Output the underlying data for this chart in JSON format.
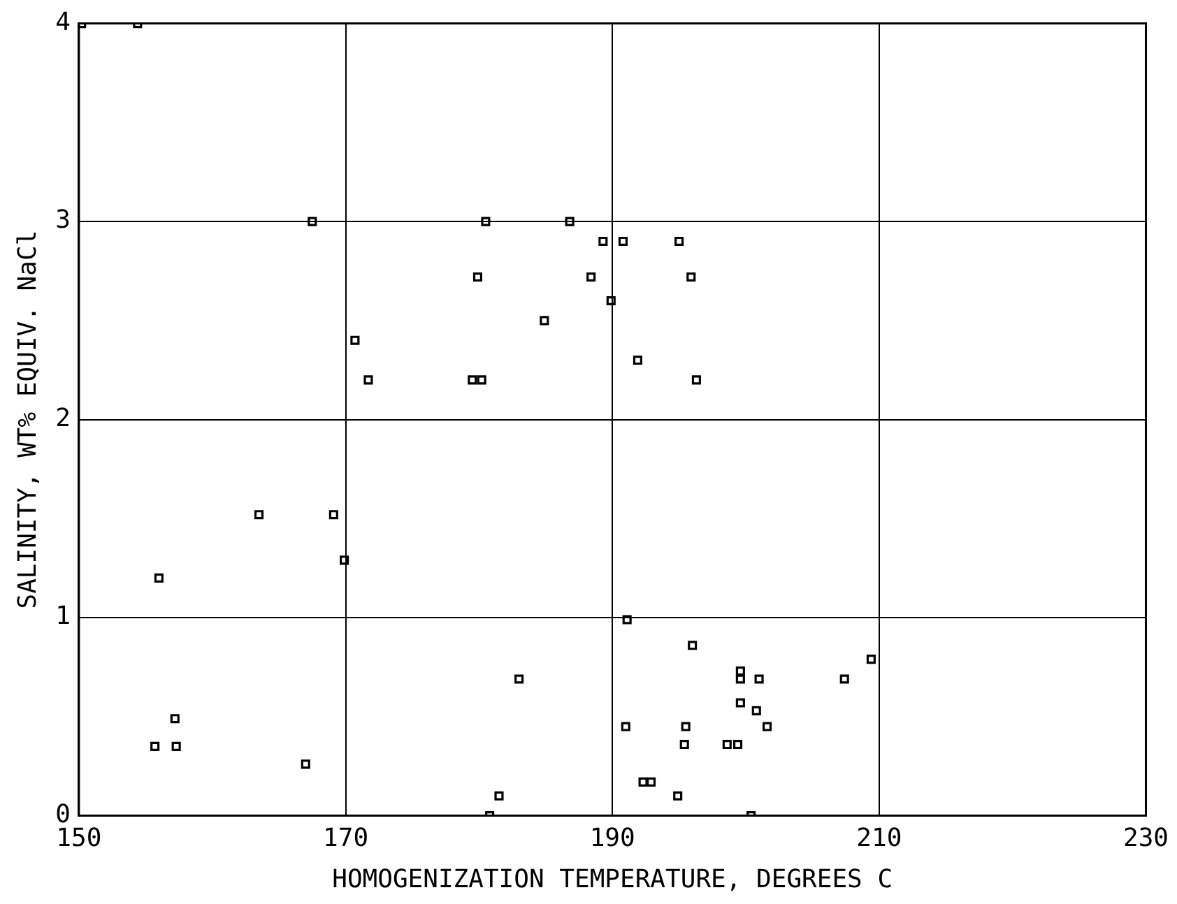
{
  "chart_data": {
    "type": "scatter",
    "xlabel": "HOMOGENIZATION TEMPERATURE, DEGREES C",
    "ylabel": "SALINITY, WT% EQUIV. NaCl",
    "xlim": [
      150,
      230
    ],
    "xticks": [
      150,
      170,
      190,
      210,
      230
    ],
    "ylim": [
      0,
      4
    ],
    "yticks": [
      0,
      1,
      2,
      3,
      4
    ],
    "grid": true,
    "marker": "square",
    "series": [
      {
        "color": "#000000",
        "x": [
          150.2,
          154.4,
          167.5,
          180.5,
          186.8,
          189.3,
          190.8,
          195,
          179.9,
          188.4,
          195.9,
          189.9,
          184.9,
          170.7,
          191.9,
          171.7,
          179.5,
          180.2,
          196.3,
          163.5,
          169.1,
          169.9,
          156,
          191.1,
          196,
          183,
          199.6,
          199.6,
          201,
          207.4,
          209.4,
          199.6,
          200.8,
          191,
          195.5,
          201.6,
          195.4,
          198.6,
          199.4,
          155.7,
          157.3,
          157.2,
          167,
          192.3,
          192.9,
          194.9,
          181.5,
          180.8,
          200.4
        ],
        "values": [
          4,
          4,
          3,
          3,
          3,
          2.9,
          2.9,
          2.9,
          2.72,
          2.72,
          2.72,
          2.6,
          2.5,
          2.4,
          2.3,
          2.2,
          2.2,
          2.2,
          2.2,
          1.52,
          1.52,
          1.29,
          1.2,
          0.99,
          0.86,
          0.69,
          0.73,
          0.69,
          0.69,
          0.69,
          0.79,
          0.57,
          0.53,
          0.45,
          0.45,
          0.45,
          0.36,
          0.36,
          0.36,
          0.35,
          0.35,
          0.49,
          0.26,
          0.17,
          0.17,
          0.1,
          0.1,
          0,
          0
        ]
      }
    ]
  }
}
